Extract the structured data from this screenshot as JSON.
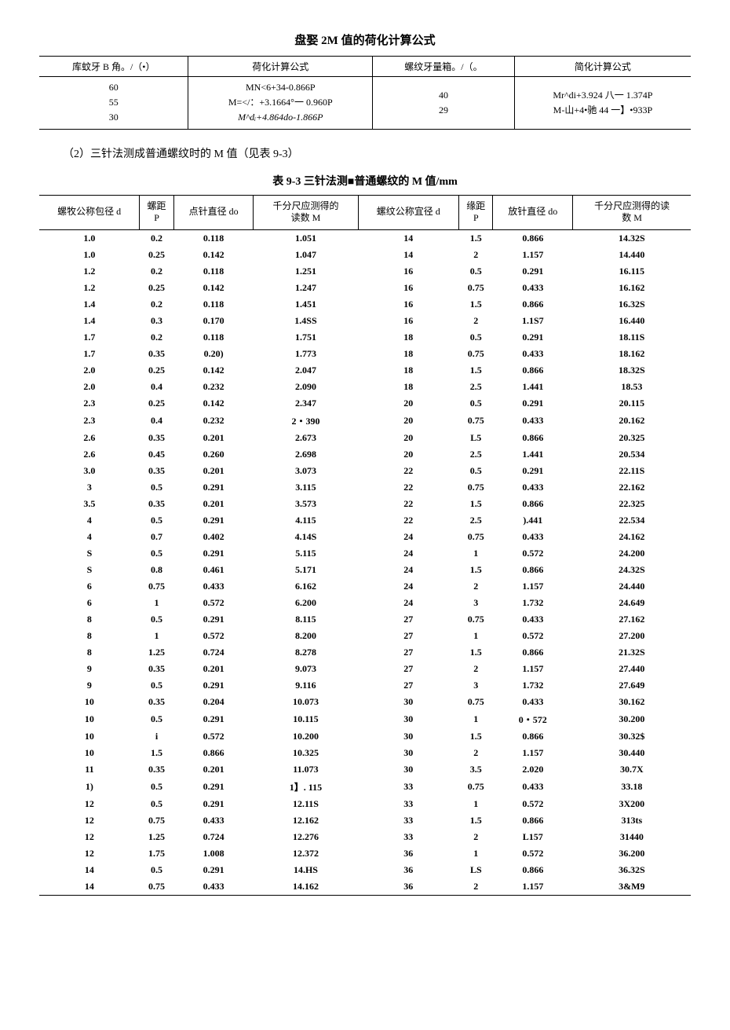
{
  "title": "盘娶 2M 值的荷化计算公式",
  "table1": {
    "headers": [
      "库蚊牙 B 角。/（•）",
      "荷化计算公式",
      "螺纹牙量箱。/（。",
      "简化计算公式"
    ],
    "col1": [
      "60",
      "55",
      "30"
    ],
    "col2": [
      "MN<6+34-0.866P",
      "M=</：+3.1664°一 0.960P",
      "M^dᵢ+4.864do-1.866P"
    ],
    "col3": [
      "40",
      "29"
    ],
    "col4": [
      "Mr^di+3.924 八一 1.374P",
      "M-山+4•驰 44 一】•933P"
    ]
  },
  "subtitle": "（2）三针法测成普通螺纹时的 M 值（见表 9-3）",
  "table2_title": "表 9-3 三针法测■普通螺纹的 M 值/mm",
  "table2": {
    "headers": [
      "螺牧公称包径 d",
      "螺距\nP",
      "点针直径 do",
      "千分尺应测得的\n读数 M",
      "螺纹公称宜径 d",
      "缘距\nP",
      "放针直径 do",
      "千分尺应测得的读\n数 M"
    ],
    "rows": [
      [
        "1.0",
        "0.2",
        "0.118",
        "1.051",
        "14",
        "1.5",
        "0.866",
        "14.32S"
      ],
      [
        "1.0",
        "0.25",
        "0.142",
        "1.047",
        "14",
        "2",
        "1.157",
        "14.440"
      ],
      [
        "1.2",
        "0.2",
        "0.118",
        "1.251",
        "16",
        "0.5",
        "0.291",
        "16.115"
      ],
      [
        "1.2",
        "0.25",
        "0.142",
        "1.247",
        "16",
        "0.75",
        "0.433",
        "16.162"
      ],
      [
        "1.4",
        "0.2",
        "0.118",
        "1.451",
        "16",
        "1.5",
        "0.866",
        "16.32S"
      ],
      [
        "1.4",
        "0.3",
        "0.170",
        "1.4SS",
        "16",
        "2",
        "1.1S7",
        "16.440"
      ],
      [
        "1.7",
        "0.2",
        "0.118",
        "1.751",
        "18",
        "0.5",
        "0.291",
        "18.11S"
      ],
      [
        "1.7",
        "0.35",
        "0.20)",
        "1.773",
        "18",
        "0.75",
        "0.433",
        "18.162"
      ],
      [
        "2.0",
        "0.25",
        "0.142",
        "2.047",
        "18",
        "1.5",
        "0.866",
        "18.32S"
      ],
      [
        "2.0",
        "0.4",
        "0.232",
        "2.090",
        "18",
        "2.5",
        "1.441",
        "18.53"
      ],
      [
        "2.3",
        "0.25",
        "0.142",
        "2.347",
        "20",
        "0.5",
        "0.291",
        "20.115"
      ],
      [
        "2.3",
        "0.4",
        "0.232",
        "2・390",
        "20",
        "0.75",
        "0.433",
        "20.162"
      ],
      [
        "2.6",
        "0.35",
        "0.201",
        "2.673",
        "20",
        "L5",
        "0.866",
        "20.325"
      ],
      [
        "2.6",
        "0.45",
        "0.260",
        "2.698",
        "20",
        "2.5",
        "1.441",
        "20.534"
      ],
      [
        "3.0",
        "0.35",
        "0.201",
        "3.073",
        "22",
        "0.5",
        "0.291",
        "22.11S"
      ],
      [
        "3",
        "0.5",
        "0.291",
        "3.115",
        "22",
        "0.75",
        "0.433",
        "22.162"
      ],
      [
        "3.5",
        "0.35",
        "0.201",
        "3.573",
        "22",
        "1.5",
        "0.866",
        "22.325"
      ],
      [
        "4",
        "0.5",
        "0.291",
        "4.115",
        "22",
        "2.5",
        ").441",
        "22.534"
      ],
      [
        "4",
        "0.7",
        "0.402",
        "4.14S",
        "24",
        "0.75",
        "0.433",
        "24.162"
      ],
      [
        "S",
        "0.5",
        "0.291",
        "5.115",
        "24",
        "1",
        "0.572",
        "24.200"
      ],
      [
        "S",
        "0.8",
        "0.461",
        "5.171",
        "24",
        "1.5",
        "0.866",
        "24.32S"
      ],
      [
        "6",
        "0.75",
        "0.433",
        "6.162",
        "24",
        "2",
        "1.157",
        "24.440"
      ],
      [
        "6",
        "1",
        "0.572",
        "6.200",
        "24",
        "3",
        "1.732",
        "24.649"
      ],
      [
        "8",
        "0.5",
        "0.291",
        "8.115",
        "27",
        "0.75",
        "0.433",
        "27.162"
      ],
      [
        "8",
        "1",
        "0.572",
        "8.200",
        "27",
        "1",
        "0.572",
        "27.200"
      ],
      [
        "8",
        "1.25",
        "0.724",
        "8.278",
        "27",
        "1.5",
        "0.866",
        "21.32S"
      ],
      [
        "9",
        "0.35",
        "0.201",
        "9.073",
        "27",
        "2",
        "1.157",
        "27.440"
      ],
      [
        "9",
        "0.5",
        "0.291",
        "9.116",
        "27",
        "3",
        "1.732",
        "27.649"
      ],
      [
        "10",
        "0.35",
        "0.204",
        "10.073",
        "30",
        "0.75",
        "0.433",
        "30.162"
      ],
      [
        "10",
        "0.5",
        "0.291",
        "10.115",
        "30",
        "1",
        "0・572",
        "30.200"
      ],
      [
        "10",
        "i",
        "0.572",
        "10.200",
        "30",
        "1.5",
        "0.866",
        "30.32$"
      ],
      [
        "10",
        "1.5",
        "0.866",
        "10.325",
        "30",
        "2",
        "1.157",
        "30.440"
      ],
      [
        "11",
        "0.35",
        "0.201",
        "11.073",
        "30",
        "3.5",
        "2.020",
        "30.7X"
      ],
      [
        "1)",
        "0.5",
        "0.291",
        "1】. 115",
        "33",
        "0.75",
        "0.433",
        "33.18"
      ],
      [
        "12",
        "0.5",
        "0.291",
        "12.11S",
        "33",
        "1",
        "0.572",
        "3X200"
      ],
      [
        "12",
        "0.75",
        "0.433",
        "12.162",
        "33",
        "1.5",
        "0.866",
        "313ts"
      ],
      [
        "12",
        "1.25",
        "0.724",
        "12.276",
        "33",
        "2",
        "L157",
        "31440"
      ],
      [
        "12",
        "1.75",
        "1.008",
        "12.372",
        "36",
        "1",
        "0.572",
        "36.200"
      ],
      [
        "14",
        "0.5",
        "0.291",
        "14.HS",
        "36",
        "LS",
        "0.866",
        "36.32S"
      ],
      [
        "14",
        "0.75",
        "0.433",
        "14.162",
        "36",
        "2",
        "1.157",
        "3&M9"
      ]
    ]
  }
}
